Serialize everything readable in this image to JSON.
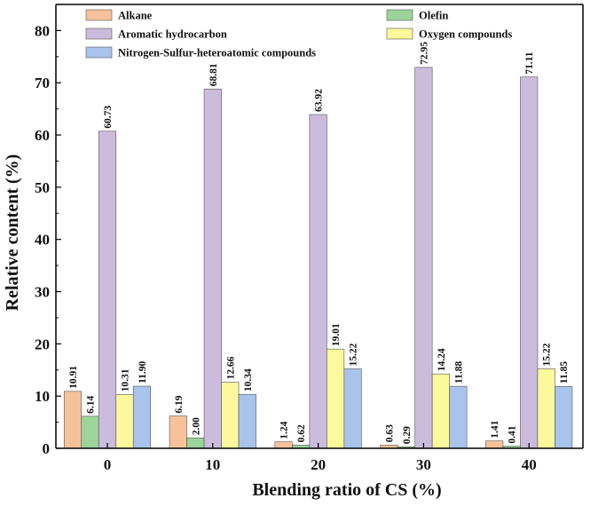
{
  "chart_data": {
    "type": "bar",
    "title": "",
    "xlabel": "Blending ratio of CS (%)",
    "ylabel": "Relative content (%)",
    "ylim": [
      0,
      85
    ],
    "yticks": [
      "0",
      "10",
      "20",
      "30",
      "40",
      "50",
      "60",
      "70",
      "80"
    ],
    "categories": [
      "0",
      "10",
      "20",
      "30",
      "40"
    ],
    "legend_position": "top",
    "series": [
      {
        "name": "Alkane",
        "color": "#f7c29a",
        "values": [
          10.91,
          6.19,
          1.24,
          0.63,
          1.41
        ],
        "labels": [
          "10.91",
          "6.19",
          "1.24",
          "0.63",
          "1.41"
        ]
      },
      {
        "name": "Olefin",
        "color": "#9cd49a",
        "values": [
          6.14,
          2.0,
          0.62,
          0.29,
          0.41
        ],
        "labels": [
          "6.14",
          "2.00",
          "0.62",
          "0.29",
          "0.41"
        ]
      },
      {
        "name": "Aromatic hydrocarbon",
        "color": "#cbbbdc",
        "values": [
          60.73,
          68.81,
          63.92,
          72.95,
          71.11
        ],
        "labels": [
          "60.73",
          "68.81",
          "63.92",
          "72.95",
          "71.11"
        ]
      },
      {
        "name": "Oxygen compounds",
        "color": "#fbf99c",
        "values": [
          10.31,
          12.66,
          19.01,
          14.24,
          15.22
        ],
        "labels": [
          "10.31",
          "12.66",
          "19.01",
          "14.24",
          "15.22"
        ]
      },
      {
        "name": "Nitrogen-Sulfur-heteroatomic compounds",
        "color": "#a8c4ec",
        "values": [
          11.9,
          10.34,
          15.22,
          11.88,
          11.85
        ],
        "labels": [
          "11.90",
          "10.34",
          "15.22",
          "11.88",
          "11.85"
        ]
      }
    ]
  }
}
